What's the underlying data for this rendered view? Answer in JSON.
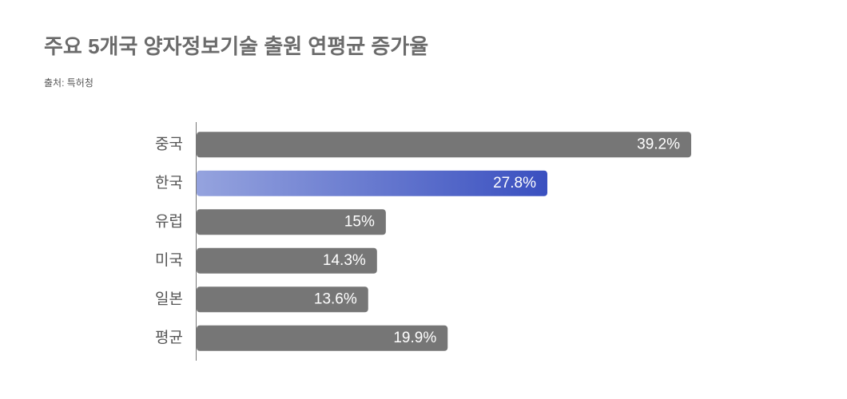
{
  "chart_data": {
    "type": "bar",
    "orientation": "horizontal",
    "title": "주요 5개국 양자정보기술 출원 연평균 증가율",
    "subtitle": "출처: 특허청",
    "categories": [
      "중국",
      "한국",
      "유럽",
      "미국",
      "일본",
      "평균"
    ],
    "values": [
      39.2,
      27.8,
      15,
      14.3,
      13.6,
      19.9
    ],
    "value_labels": [
      "39.2%",
      "27.8%",
      "15%",
      "14.3%",
      "13.6%",
      "19.9%"
    ],
    "colors": [
      "#767676",
      "#3a50c0",
      "#767676",
      "#767676",
      "#767676",
      "#767676"
    ]
  }
}
